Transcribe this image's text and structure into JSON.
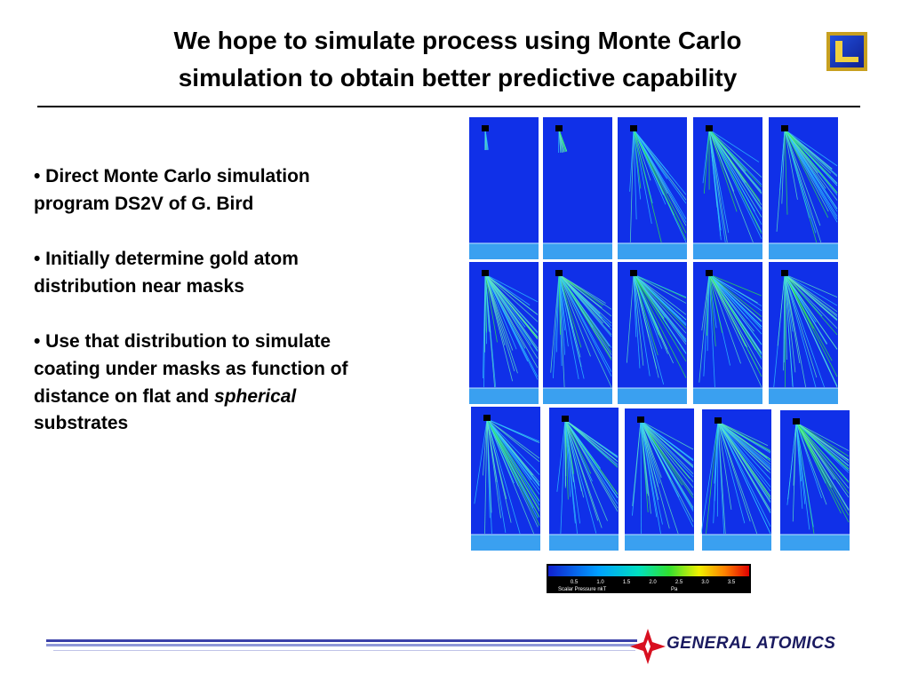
{
  "header": {
    "title_lines": [
      "We hope to simulate process using Monte Carlo",
      "simulation to obtain better predictive capability"
    ]
  },
  "bullets": [
    {
      "lines": [
        "• Direct Monte Carlo simulation",
        "program DS2V of G. Bird"
      ]
    },
    {
      "lines": [
        "• Initially determine gold atom",
        "distribution near masks"
      ]
    },
    {
      "lines": [
        "• Use that distribution to simulate",
        "coating under masks as function of"
      ],
      "line3_text": "distance on flat and",
      "line3_italic": "spherical",
      "line4": "substrates"
    }
  ],
  "colorbar": {
    "ticks": [
      "0.5",
      "1.0",
      "1.5",
      "2.0",
      "2.5",
      "3.0",
      "3.5"
    ],
    "quantity": "Scalar Pressure nkT",
    "unit": "Pa"
  },
  "footer": {
    "company": "GENERAL ATOMICS"
  }
}
